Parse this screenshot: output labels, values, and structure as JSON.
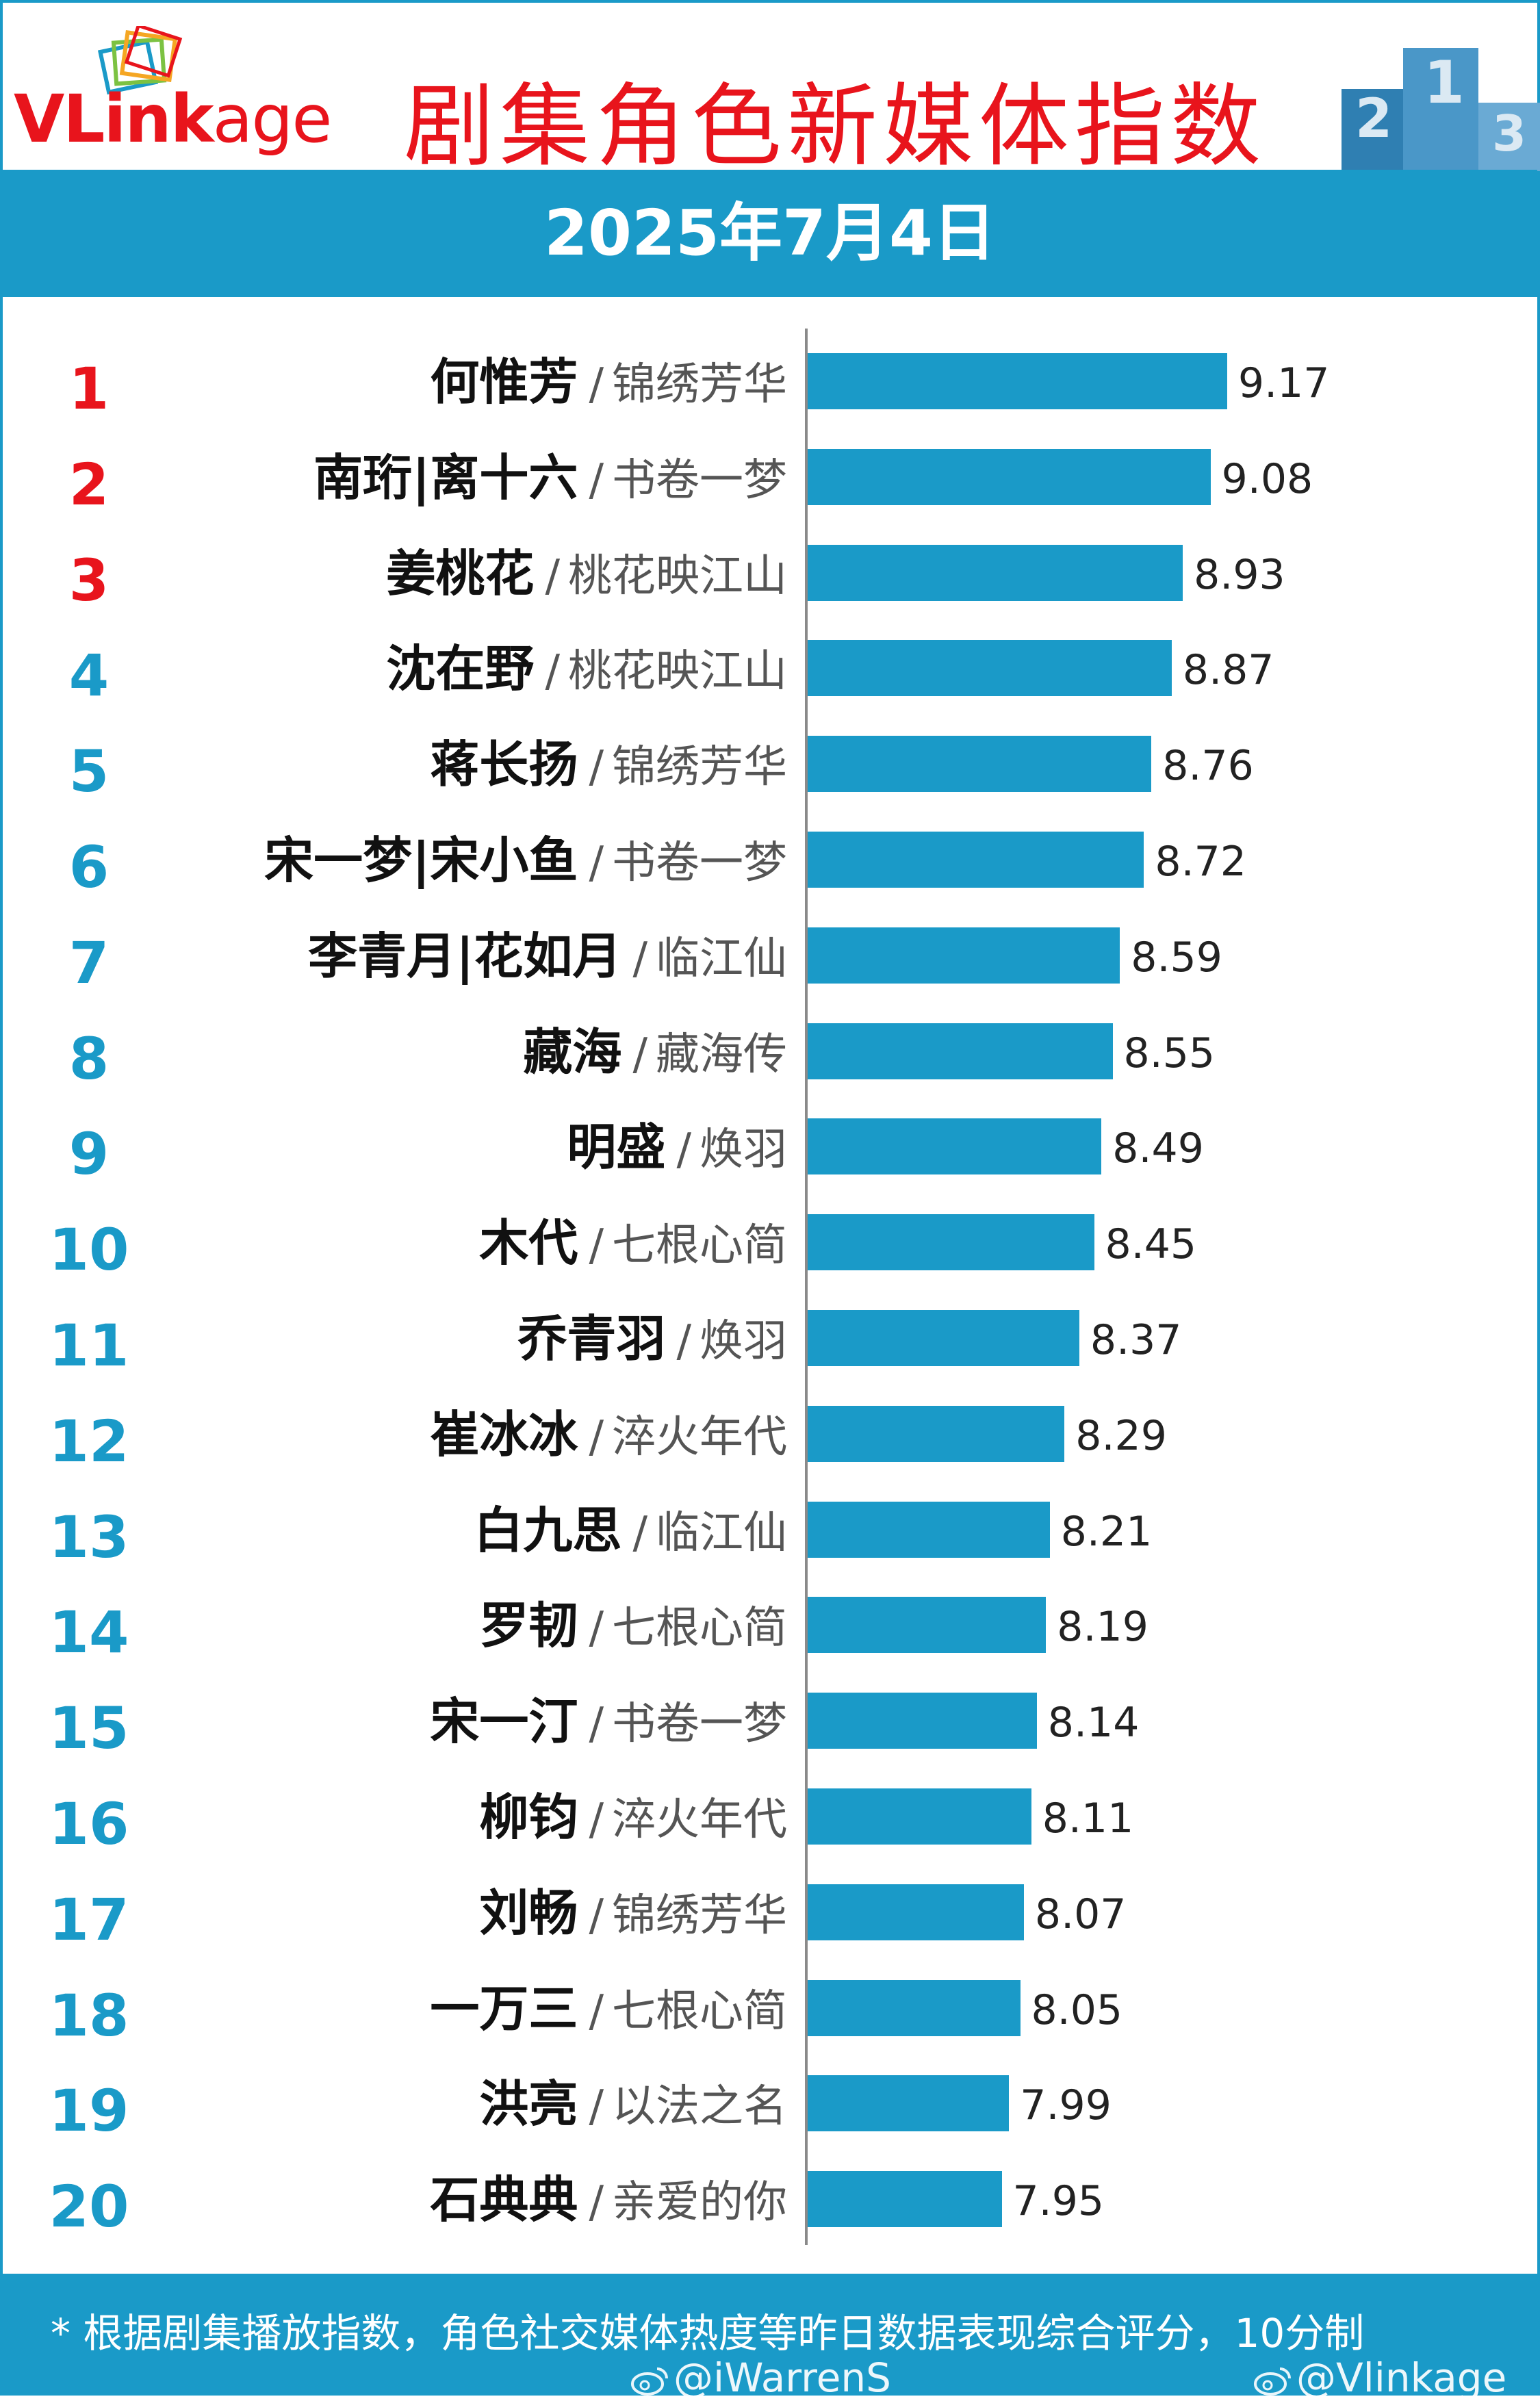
{
  "header": {
    "logo_text_bold": "VLink",
    "logo_text_rest": "age",
    "title": "剧集角色新媒体指数",
    "date": "2025年7月4日",
    "podium_labels": [
      "2",
      "1",
      "3"
    ]
  },
  "colors": {
    "accent": "#1a9ac8",
    "title_red": "#e8141c",
    "top_rank_red": "#e8141c"
  },
  "chart_data": {
    "type": "bar",
    "orientation": "horizontal",
    "title": "剧集角色新媒体指数",
    "subtitle": "2025年7月4日",
    "xlim": [
      6.9,
      10
    ],
    "rows": [
      {
        "rank": "1",
        "name": "何惟芳",
        "drama": "锦绣芳华",
        "value": 9.17,
        "value_label": "9.17"
      },
      {
        "rank": "2",
        "name": "南珩|离十六",
        "drama": "书卷一梦",
        "value": 9.08,
        "value_label": "9.08"
      },
      {
        "rank": "3",
        "name": "姜桃花",
        "drama": "桃花映江山",
        "value": 8.93,
        "value_label": "8.93"
      },
      {
        "rank": "4",
        "name": "沈在野",
        "drama": "桃花映江山",
        "value": 8.87,
        "value_label": "8.87"
      },
      {
        "rank": "5",
        "name": "蒋长扬",
        "drama": "锦绣芳华",
        "value": 8.76,
        "value_label": "8.76"
      },
      {
        "rank": "6",
        "name": "宋一梦|宋小鱼",
        "drama": "书卷一梦",
        "value": 8.72,
        "value_label": "8.72"
      },
      {
        "rank": "7",
        "name": "李青月|花如月",
        "drama": "临江仙",
        "value": 8.59,
        "value_label": "8.59"
      },
      {
        "rank": "8",
        "name": "藏海",
        "drama": "藏海传",
        "value": 8.55,
        "value_label": "8.55"
      },
      {
        "rank": "9",
        "name": "明盛",
        "drama": "焕羽",
        "value": 8.49,
        "value_label": "8.49"
      },
      {
        "rank": "10",
        "name": "木代",
        "drama": "七根心简",
        "value": 8.45,
        "value_label": "8.45"
      },
      {
        "rank": "11",
        "name": "乔青羽",
        "drama": "焕羽",
        "value": 8.37,
        "value_label": "8.37"
      },
      {
        "rank": "12",
        "name": "崔冰冰",
        "drama": "淬火年代",
        "value": 8.29,
        "value_label": "8.29"
      },
      {
        "rank": "13",
        "name": "白九思",
        "drama": "临江仙",
        "value": 8.21,
        "value_label": "8.21"
      },
      {
        "rank": "14",
        "name": "罗韧",
        "drama": "七根心简",
        "value": 8.19,
        "value_label": "8.19"
      },
      {
        "rank": "15",
        "name": "宋一汀",
        "drama": "书卷一梦",
        "value": 8.14,
        "value_label": "8.14"
      },
      {
        "rank": "16",
        "name": "柳钧",
        "drama": "淬火年代",
        "value": 8.11,
        "value_label": "8.11"
      },
      {
        "rank": "17",
        "name": "刘畅",
        "drama": "锦绣芳华",
        "value": 8.07,
        "value_label": "8.07"
      },
      {
        "rank": "18",
        "name": "一万三",
        "drama": "七根心简",
        "value": 8.05,
        "value_label": "8.05"
      },
      {
        "rank": "19",
        "name": "洪亮",
        "drama": "以法之名",
        "value": 7.99,
        "value_label": "7.99"
      },
      {
        "rank": "20",
        "name": "石典典",
        "drama": "亲爱的你",
        "value": 7.95,
        "value_label": "7.95"
      }
    ]
  },
  "footer": {
    "note": "* 根据剧集播放指数，角色社交媒体热度等昨日数据表现综合评分，10分制",
    "watermark_1": "@iWarrenS",
    "watermark_2": "@Vlinkage",
    "watermark_icon": "weibo-icon"
  }
}
